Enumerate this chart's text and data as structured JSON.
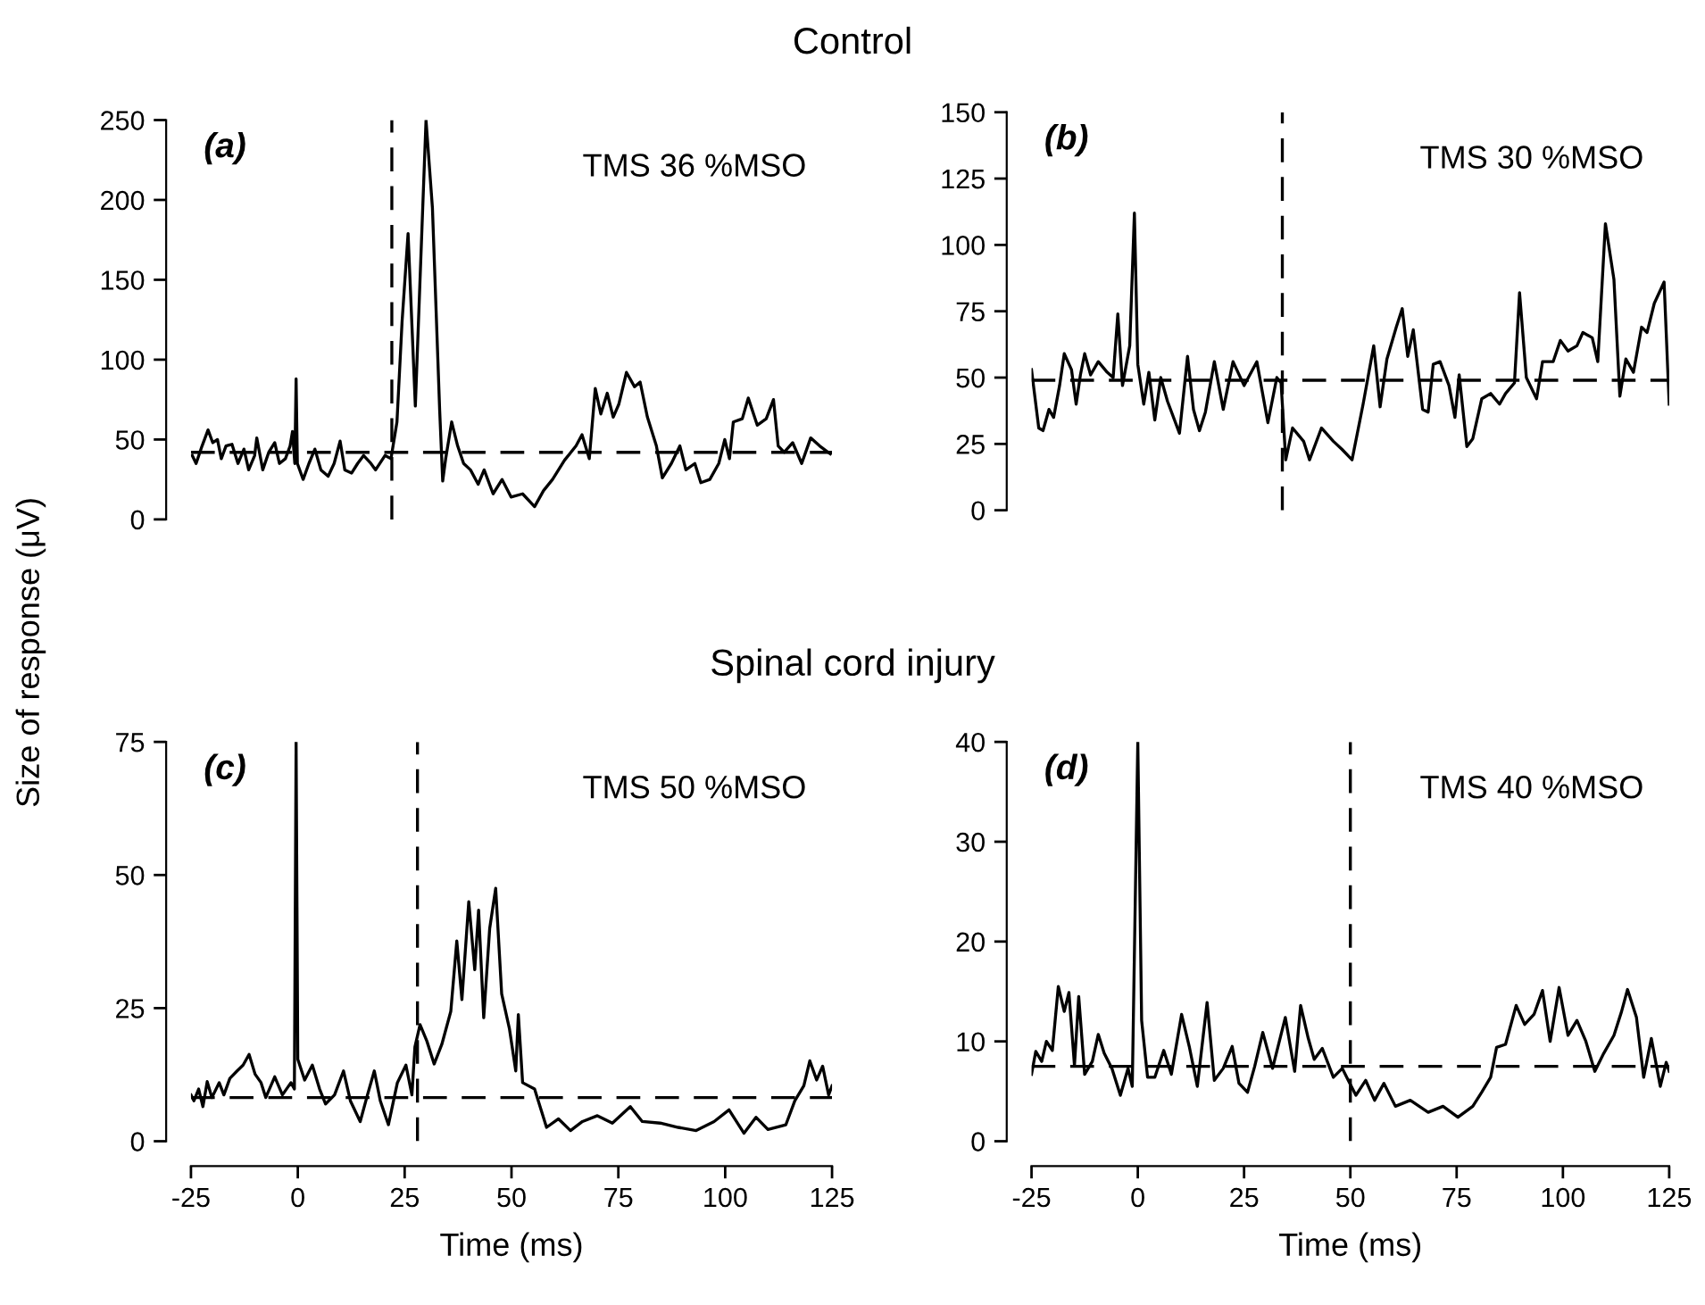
{
  "chart_data": [
    {
      "type": "line",
      "title": "Control",
      "ylabel": "Size of response (μV)",
      "annotations": [
        "(a)",
        "TMS 36 %MSO"
      ],
      "xlim": [
        -25,
        125
      ],
      "ylim": [
        0,
        250
      ],
      "yticks": [
        0,
        50,
        100,
        150,
        200,
        250
      ],
      "tick_labels": "y",
      "grid": false,
      "legend": false,
      "marker": "none",
      "line_style": "solid",
      "ref_lines": [
        {
          "axis": "x",
          "value": 22,
          "color": "#000000",
          "line_style": "dashed"
        },
        {
          "axis": "y",
          "value": 42,
          "color": "#000000",
          "line_style": "dashed"
        }
      ],
      "series": [
        {
          "color": "#000000",
          "x": [
            -24.7,
            -23.8,
            -22.4,
            -21,
            -19.9,
            -18.8,
            -17.9,
            -16.8,
            -15.4,
            -14,
            -12.6,
            -11.5,
            -10.1,
            -9.6,
            -8.2,
            -6.8,
            -5.4,
            -4.3,
            -2.9,
            -1.8,
            -1.25,
            -0.7,
            -0.4,
            -0.1,
            1.25,
            2.6,
            4,
            5.4,
            7.1,
            8.5,
            9.9,
            11,
            12.6,
            14,
            15.4,
            17.1,
            18.2,
            20.4,
            21.8,
            23.2,
            24.4,
            25.8,
            27.5,
            28.6,
            30,
            31.5,
            33.2,
            33.9,
            34.6,
            36,
            37.4,
            38.8,
            40.4,
            42.2,
            43.6,
            45.7,
            47.8,
            49.9,
            52.6,
            55.4,
            57.5,
            59.6,
            62.4,
            65.1,
            66.5,
            68.2,
            69.6,
            70.9,
            72.4,
            73.8,
            75.1,
            76.9,
            78.8,
            80.1,
            81.8,
            83.9,
            85.3,
            87.4,
            89.4,
            90.8,
            92.9,
            94.3,
            96.4,
            98.5,
            99.9,
            101,
            101.9,
            104,
            105.4,
            107.5,
            109.6,
            111.3,
            112.4,
            113.8,
            115.8,
            117.9,
            120,
            122.1,
            124.6
          ],
          "values": [
            40,
            35,
            46,
            56,
            48,
            50,
            38,
            46,
            47,
            35,
            44,
            31,
            40,
            51,
            31,
            42,
            48,
            35,
            38,
            46,
            55,
            35,
            88,
            35,
            25,
            35,
            44,
            31,
            27,
            35,
            49,
            31,
            29,
            35,
            40,
            35,
            31,
            40,
            38,
            61,
            124,
            179,
            71,
            150,
            250,
            195,
            68,
            24,
            38,
            61,
            46,
            35,
            31,
            22,
            31,
            16,
            25,
            14,
            16,
            8,
            18,
            25,
            37,
            46,
            53,
            38,
            82,
            66,
            79,
            64,
            72,
            92,
            83,
            86,
            64,
            46,
            26,
            35,
            46,
            31,
            35,
            23,
            25,
            35,
            50,
            38,
            61,
            63,
            76,
            59,
            63,
            75,
            46,
            42,
            48,
            35,
            51,
            46,
            41
          ]
        }
      ]
    },
    {
      "type": "line",
      "annotations": [
        "(b)",
        "TMS 30 %MSO"
      ],
      "xlim": [
        -25,
        125
      ],
      "ylim": [
        0,
        150
      ],
      "yticks": [
        0,
        25,
        50,
        75,
        100,
        125,
        150
      ],
      "tick_labels": "y",
      "grid": false,
      "legend": false,
      "marker": "none",
      "line_style": "solid",
      "ref_lines": [
        {
          "axis": "x",
          "value": 34,
          "color": "#000000",
          "line_style": "dashed"
        },
        {
          "axis": "y",
          "value": 49,
          "color": "#000000",
          "line_style": "dashed"
        }
      ],
      "series": [
        {
          "color": "#000000",
          "x": [
            -25,
            -23.3,
            -22.3,
            -20.9,
            -19.8,
            -18.4,
            -17.3,
            -15.6,
            -14.5,
            -13.5,
            -12.5,
            -11.1,
            -9.3,
            -7.2,
            -5.8,
            -4.7,
            -3.6,
            -1.9,
            -0.8,
            0,
            1.4,
            2.6,
            4,
            5.4,
            7,
            9.8,
            11.7,
            13.1,
            14.5,
            15.9,
            18,
            20.1,
            22.4,
            25,
            28,
            30.6,
            32.7,
            33.7,
            34.8,
            36.4,
            39,
            40.4,
            43.2,
            46,
            48,
            50.4,
            53,
            55.5,
            57,
            58.6,
            60.8,
            62.2,
            63.5,
            64.8,
            67,
            68.3,
            69.5,
            71.1,
            73.2,
            74.6,
            75.6,
            77.4,
            78.8,
            80.9,
            83,
            85.1,
            86.5,
            88.6,
            89.8,
            91.4,
            93.8,
            95.2,
            97.7,
            99.4,
            101.2,
            103.3,
            104.7,
            106.9,
            108.2,
            110,
            112,
            113.4,
            114.8,
            116.6,
            118.5,
            119.8,
            121.5,
            123.8,
            125
          ],
          "values": [
            53,
            31,
            30,
            38,
            35,
            47,
            59,
            53,
            40,
            51,
            59,
            51,
            56,
            52,
            50,
            74,
            47,
            62,
            112,
            55,
            40,
            52,
            34,
            50,
            41,
            29,
            58,
            38,
            30,
            37,
            56,
            38,
            56,
            47,
            56,
            33,
            50,
            48,
            19,
            31,
            26,
            19,
            31,
            26,
            23,
            19,
            40,
            62,
            39,
            57,
            69,
            76,
            58,
            68,
            38,
            37,
            55,
            56,
            47,
            35,
            51,
            24,
            27,
            42,
            44,
            40,
            44,
            48,
            82,
            50,
            42,
            56,
            56,
            64,
            60,
            62,
            67,
            65,
            56,
            108,
            87,
            43,
            57,
            52,
            69,
            67,
            78,
            86,
            40
          ]
        }
      ]
    },
    {
      "type": "line",
      "title": "Spinal cord injury",
      "xlabel": "Time (ms)",
      "annotations": [
        "(c)",
        "TMS 50 %MSO"
      ],
      "xlim": [
        -25,
        125
      ],
      "xticks": [
        -25,
        0,
        25,
        50,
        75,
        100,
        125
      ],
      "ylim": [
        0,
        75
      ],
      "yticks": [
        0,
        25,
        50,
        75
      ],
      "grid": false,
      "legend": false,
      "marker": "none",
      "line_style": "solid",
      "ref_lines": [
        {
          "axis": "x",
          "value": 28,
          "color": "#000000",
          "line_style": "dashed"
        },
        {
          "axis": "y",
          "value": 8.2,
          "color": "#000000",
          "line_style": "dashed"
        }
      ],
      "series": [
        {
          "color": "#000000",
          "x": [
            -25,
            -24.3,
            -23.2,
            -22.2,
            -21.2,
            -20.1,
            -18.4,
            -17.3,
            -15.9,
            -14.2,
            -12.8,
            -11.4,
            -10,
            -8.6,
            -7.5,
            -5.4,
            -3.6,
            -1.6,
            -0.8,
            -0.4,
            0,
            1.6,
            3.4,
            5.1,
            6.5,
            8.6,
            10.7,
            12.3,
            14.6,
            16.3,
            17.9,
            19.3,
            21.2,
            23.3,
            25.3,
            26.7,
            27.4,
            28.6,
            30.2,
            31.9,
            33.7,
            35.8,
            37.2,
            38.4,
            40,
            41.4,
            42.3,
            43.5,
            44.9,
            46.3,
            47.7,
            49.5,
            51,
            51.6,
            52.6,
            55.4,
            58.2,
            61,
            63.8,
            66.6,
            70.1,
            73.6,
            77.8,
            80.6,
            84.8,
            89,
            93.2,
            97.4,
            100.9,
            104.4,
            107.2,
            110,
            114.2,
            116.3,
            118.4,
            119.8,
            121.4,
            122.8,
            124.2,
            125
          ],
          "values": [
            8.7,
            7.6,
            9.8,
            6.5,
            11.2,
            8.2,
            11,
            8.7,
            11.8,
            13.2,
            14.3,
            16.3,
            12.6,
            11,
            8.2,
            12.1,
            8.7,
            11,
            9.8,
            75,
            15.4,
            11.5,
            14.3,
            9.8,
            7,
            8.7,
            13.2,
            7.6,
            3.7,
            8.7,
            13.2,
            7.6,
            3.1,
            11,
            14.3,
            8.7,
            17.7,
            21.9,
            18.8,
            14.5,
            18.2,
            24.4,
            37.6,
            26.6,
            45,
            32.2,
            43.4,
            23.2,
            40,
            47.5,
            27.7,
            21.2,
            13.2,
            23.8,
            11,
            9.8,
            2.6,
            4.2,
            2,
            3.7,
            4.8,
            3.4,
            6.5,
            3.7,
            3.4,
            2.6,
            2,
            3.7,
            5.9,
            1.5,
            4.5,
            2.2,
            3.1,
            7.6,
            10.4,
            15.1,
            11.5,
            14.1,
            8.7,
            10.4
          ]
        }
      ]
    },
    {
      "type": "line",
      "xlabel": "Time (ms)",
      "annotations": [
        "(d)",
        "TMS 40 %MSO"
      ],
      "xlim": [
        -25,
        125
      ],
      "xticks": [
        -25,
        0,
        25,
        50,
        75,
        100,
        125
      ],
      "ylim": [
        0,
        40
      ],
      "yticks": [
        0,
        10,
        20,
        30,
        40
      ],
      "grid": false,
      "legend": false,
      "marker": "none",
      "line_style": "solid",
      "ref_lines": [
        {
          "axis": "x",
          "value": 50,
          "color": "#000000",
          "line_style": "dashed"
        },
        {
          "axis": "y",
          "value": 7.5,
          "color": "#000000",
          "line_style": "dashed"
        }
      ],
      "series": [
        {
          "color": "#000000",
          "x": [
            -25,
            -24,
            -22.6,
            -21.5,
            -20.1,
            -18.7,
            -17.3,
            -16.2,
            -14.9,
            -13.9,
            -12.5,
            -10.7,
            -9.3,
            -7.9,
            -6.1,
            -4.1,
            -2.3,
            -1.3,
            0,
            0.9,
            2.3,
            4,
            6.1,
            7.9,
            10.3,
            12.1,
            14,
            16.3,
            18,
            20.1,
            22.2,
            23.8,
            25.8,
            27.5,
            29.4,
            31.7,
            34.7,
            36.9,
            38.3,
            40.1,
            41.5,
            43.4,
            46,
            48.1,
            49.5,
            51.3,
            53.6,
            55.7,
            57.9,
            60.6,
            64.1,
            68.3,
            71.8,
            75.3,
            78.8,
            80.9,
            83,
            84.4,
            86.5,
            89,
            91,
            93.2,
            95.2,
            97,
            99.1,
            101.2,
            103.3,
            105.4,
            107.5,
            109.6,
            112,
            113.8,
            115.2,
            117.3,
            119,
            120.8,
            122.9,
            124.3,
            125
          ],
          "values": [
            6.7,
            9,
            8,
            10,
            9.1,
            15.5,
            13,
            14.9,
            7.6,
            14.5,
            6.7,
            8,
            10.7,
            8.8,
            7.3,
            4.6,
            7.3,
            5.5,
            40,
            12.1,
            6.4,
            6.4,
            9.1,
            6.7,
            12.7,
            9.5,
            5.5,
            13.9,
            6.1,
            7.3,
            9.5,
            5.8,
            4.9,
            7.5,
            10.9,
            7.3,
            12.4,
            7,
            13.6,
            10.3,
            8.2,
            9.3,
            6.4,
            7.3,
            6.1,
            4.6,
            6.1,
            4.1,
            5.8,
            3.5,
            4.1,
            2.9,
            3.5,
            2.4,
            3.5,
            4.9,
            6.4,
            9.4,
            9.7,
            13.6,
            11.7,
            12.7,
            15.1,
            10,
            15.4,
            10.6,
            12.1,
            10,
            7,
            8.8,
            10.6,
            13,
            15.2,
            12.4,
            6.4,
            10.3,
            5.5,
            7.9,
            7
          ]
        }
      ]
    }
  ]
}
